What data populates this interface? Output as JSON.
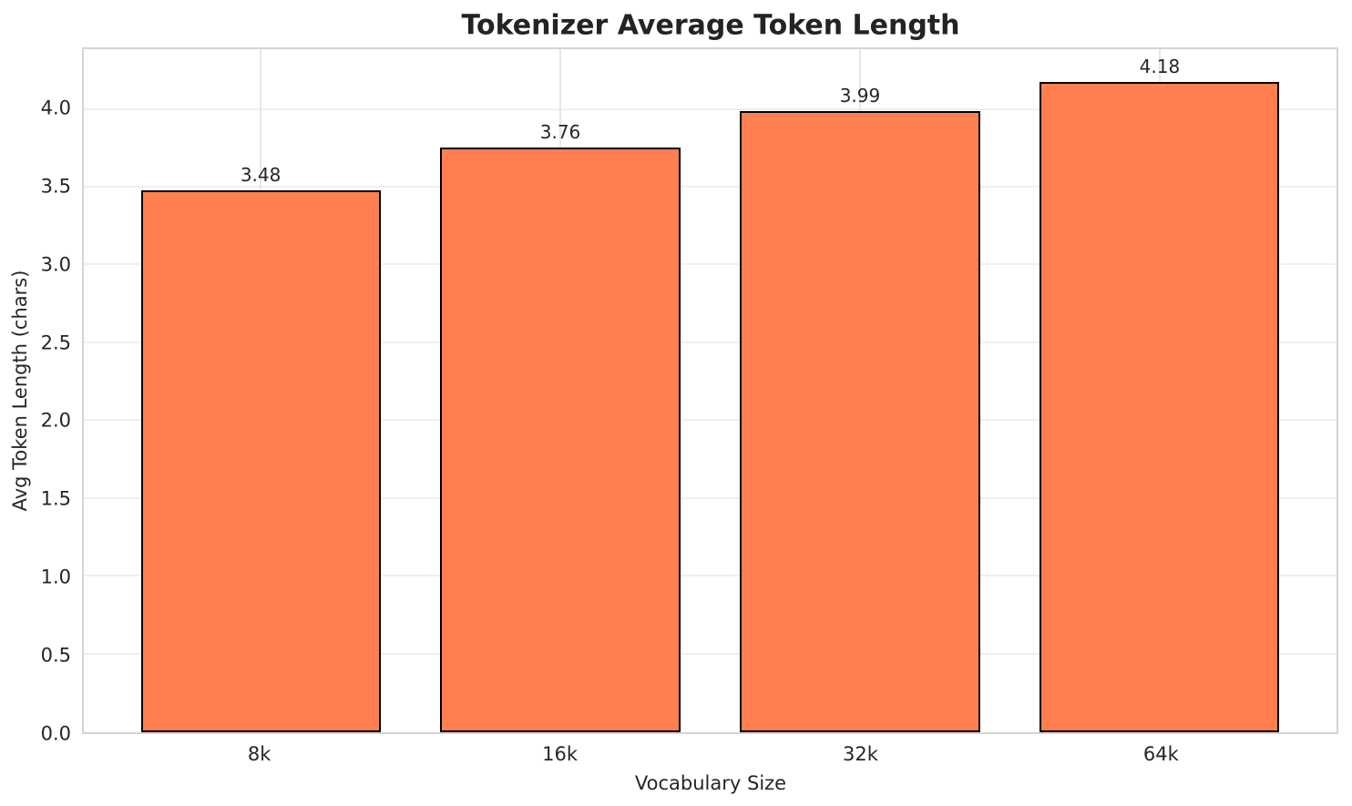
{
  "chart_data": {
    "type": "bar",
    "title": "Tokenizer Average Token Length",
    "xlabel": "Vocabulary Size",
    "ylabel": "Avg Token Length (chars)",
    "categories": [
      "8k",
      "16k",
      "32k",
      "64k"
    ],
    "values": [
      3.48,
      3.76,
      3.99,
      4.18
    ],
    "value_labels": [
      "3.48",
      "3.76",
      "3.99",
      "4.18"
    ],
    "yticks": [
      0.0,
      0.5,
      1.0,
      1.5,
      2.0,
      2.5,
      3.0,
      3.5,
      4.0
    ],
    "ytick_labels": [
      "0.0",
      "0.5",
      "1.0",
      "1.5",
      "2.0",
      "2.5",
      "3.0",
      "3.5",
      "4.0"
    ],
    "ylim": [
      0,
      4.39
    ],
    "xlim": [
      -0.59,
      3.59
    ],
    "bar_width": 0.8,
    "grid": true,
    "legend": "none",
    "colors": {
      "bar_fill": "#FF7F50",
      "bar_edge": "#000000",
      "grid_h": "#efefef",
      "grid_v": "#e7e7e7",
      "frame": "#d4d4d4",
      "text": "#262626",
      "title": "#232323"
    }
  }
}
